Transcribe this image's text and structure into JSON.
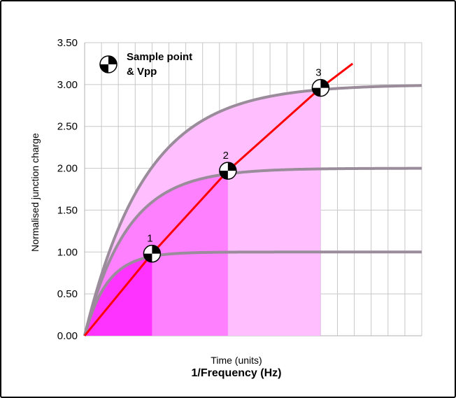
{
  "chart_data": {
    "type": "line",
    "xlabel": "Time (units)",
    "xlabel_secondary": "1/Frequency (Hz)",
    "ylabel": "Normalised junction charge",
    "ylim": [
      0,
      3.5
    ],
    "yticks": [
      "0.00",
      "0.50",
      "1.00",
      "1.50",
      "2.00",
      "2.50",
      "3.00",
      "3.50"
    ],
    "xlim": [
      0,
      20
    ],
    "x_gridlines": 20,
    "grid": true,
    "legend": {
      "position": "top-left",
      "label_line1": "Sample point",
      "label_line2": "& Vpp",
      "icon": "sample-point-marker-icon"
    },
    "charging_curves": [
      {
        "final_value": 1.0,
        "time_constant": 1.35,
        "sample_x": 4.0,
        "fill": "#ff33ff"
      },
      {
        "final_value": 2.0,
        "time_constant": 2.5,
        "sample_x": 8.5,
        "fill": "#ff80ff"
      },
      {
        "final_value": 3.0,
        "time_constant": 3.6,
        "sample_x": 14.0,
        "fill": "#ffbfff"
      }
    ],
    "sample_points": [
      {
        "label": "1",
        "x": 4.0,
        "y": 0.98
      },
      {
        "label": "2",
        "x": 8.5,
        "y": 1.97
      },
      {
        "label": "3",
        "x": 14.0,
        "y": 2.96
      }
    ],
    "vpp_line": {
      "x": [
        0,
        4.0,
        8.5,
        14.0,
        15.9
      ],
      "y": [
        0,
        0.98,
        1.97,
        2.96,
        3.25
      ],
      "color": "#ff0000"
    },
    "curve_color": "#9a8c9a"
  }
}
